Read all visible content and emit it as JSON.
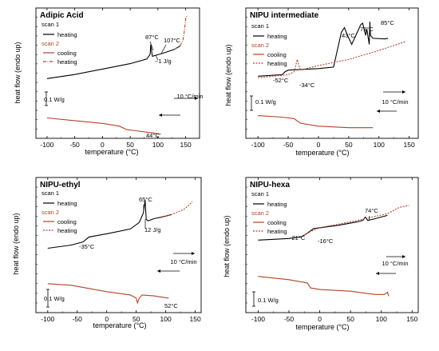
{
  "colors": {
    "scan1": "#000000",
    "scan2": "#b0442a"
  },
  "chart_data": [
    {
      "type": "line",
      "title": "Adipic Acid",
      "xlabel": "temperature (°C)",
      "ylabel": "heat flow (endo up)",
      "xlim": [
        -120,
        175
      ],
      "xticks": [
        "-100",
        "-50",
        "0",
        "50",
        "100",
        "150"
      ],
      "scale_label": "0.1 W/g",
      "rate_label": "10 °C/min",
      "legend": {
        "scan1": "scan 1",
        "scan2": "scan 2",
        "heating": "heating",
        "cooling": "cooling"
      },
      "annotations": [
        "87°C",
        "107°C",
        "~1 J/g",
        "44°C"
      ],
      "series": [
        {
          "name": "heating",
          "scan": 1,
          "style": "solid",
          "points": [
            [
              -100,
              -100
            ],
            [
              -50,
              -85
            ],
            [
              0,
              -65
            ],
            [
              50,
              -45
            ],
            [
              80,
              -28
            ],
            [
              86,
              -10
            ],
            [
              87,
              25
            ],
            [
              90,
              -18
            ],
            [
              100,
              -12
            ],
            [
              110,
              -6
            ],
            [
              130,
              8
            ],
            [
              140,
              20
            ]
          ]
        },
        {
          "name": "heating",
          "scan": 2,
          "style": "dashdot",
          "points": [
            [
              130,
              8
            ],
            [
              140,
              22
            ],
            [
              145,
              40
            ],
            [
              148,
              80
            ],
            [
              150,
              120
            ],
            [
              152,
              130
            ]
          ]
        },
        {
          "name": "cooling",
          "scan": 2,
          "style": "solid",
          "points": [
            [
              -100,
              -245
            ],
            [
              -50,
              -255
            ],
            [
              0,
              -265
            ],
            [
              30,
              -275
            ],
            [
              44,
              -288
            ],
            [
              60,
              -292
            ],
            [
              90,
              -300
            ],
            [
              105,
              -305
            ]
          ]
        }
      ]
    },
    {
      "type": "line",
      "title": "NIPU intermediate",
      "xlabel": "temperature (°C)",
      "ylabel": "heat flow (endo up)",
      "xlim": [
        -120,
        165
      ],
      "xticks": [
        "-100",
        "-50",
        "0",
        "50",
        "100",
        "150"
      ],
      "scale_label": "0.1 W/g",
      "rate_label": "10 °C/min",
      "legend": {
        "scan1": "scan 1",
        "scan2": "scan 2",
        "heating": "heating",
        "cooling": "cooling"
      },
      "annotations": [
        "-52°C",
        "-34°C",
        "43°C",
        "73°C",
        "85°C"
      ],
      "series": [
        {
          "name": "heating",
          "scan": 1,
          "style": "solid",
          "points": [
            [
              -100,
              -115
            ],
            [
              -60,
              -110
            ],
            [
              -55,
              -100
            ],
            [
              -50,
              -95
            ],
            [
              0,
              -90
            ],
            [
              25,
              -85
            ],
            [
              30,
              -40
            ],
            [
              38,
              30
            ],
            [
              43,
              45
            ],
            [
              48,
              20
            ],
            [
              55,
              -10
            ],
            [
              62,
              20
            ],
            [
              70,
              55
            ],
            [
              73,
              60
            ],
            [
              78,
              20
            ],
            [
              80,
              40
            ],
            [
              84,
              -10
            ],
            [
              85,
              65
            ],
            [
              86,
              20
            ],
            [
              90,
              10
            ],
            [
              110,
              8
            ],
            [
              115,
              10
            ]
          ]
        },
        {
          "name": "heating",
          "scan": 2,
          "style": "dashed",
          "points": [
            [
              -100,
              -120
            ],
            [
              -50,
              -110
            ],
            [
              -40,
              -100
            ],
            [
              -35,
              -60
            ],
            [
              -30,
              -95
            ],
            [
              0,
              -80
            ],
            [
              50,
              -60
            ],
            [
              100,
              -30
            ],
            [
              130,
              -10
            ],
            [
              145,
              0
            ]
          ]
        },
        {
          "name": "cooling",
          "scan": 2,
          "style": "solid",
          "points": [
            [
              -100,
              -245
            ],
            [
              -60,
              -250
            ],
            [
              -40,
              -255
            ],
            [
              -30,
              -270
            ],
            [
              0,
              -280
            ],
            [
              50,
              -285
            ],
            [
              90,
              -285
            ]
          ]
        }
      ]
    },
    {
      "type": "line",
      "title": "NIPU-ethyl",
      "xlabel": "temperature (°C)",
      "ylabel": "heat flow (endo up)",
      "xlim": [
        -120,
        160
      ],
      "xticks": [
        "-100",
        "-50",
        "0",
        "50",
        "100",
        "150"
      ],
      "scale_label": "0.1 W/g",
      "rate_label": "10 °C/min",
      "legend": {
        "scan1": "scan 1",
        "scan2": "scan 2",
        "heating": "heating",
        "cooling": "cooling"
      },
      "annotations": [
        "65°C",
        "-35°C",
        "12 J/g",
        "52°C"
      ],
      "series": [
        {
          "name": "heating",
          "scan": 1,
          "style": "solid",
          "points": [
            [
              -100,
              -130
            ],
            [
              -60,
              -120
            ],
            [
              -40,
              -110
            ],
            [
              -30,
              -95
            ],
            [
              0,
              -85
            ],
            [
              40,
              -70
            ],
            [
              55,
              -50
            ],
            [
              62,
              -20
            ],
            [
              65,
              20
            ],
            [
              67,
              -40
            ],
            [
              70,
              -45
            ],
            [
              80,
              -38
            ],
            [
              100,
              -30
            ],
            [
              110,
              -25
            ]
          ]
        },
        {
          "name": "heating",
          "scan": 2,
          "style": "dashed",
          "points": [
            [
              90,
              -35
            ],
            [
              110,
              -25
            ],
            [
              130,
              -10
            ],
            [
              140,
              5
            ],
            [
              145,
              15
            ]
          ]
        },
        {
          "name": "cooling",
          "scan": 2,
          "style": "solid",
          "points": [
            [
              -100,
              -240
            ],
            [
              -60,
              -245
            ],
            [
              -30,
              -255
            ],
            [
              0,
              -265
            ],
            [
              40,
              -275
            ],
            [
              50,
              -285
            ],
            [
              52,
              -300
            ],
            [
              55,
              -285
            ],
            [
              60,
              -275
            ],
            [
              80,
              -278
            ],
            [
              105,
              -285
            ]
          ]
        }
      ]
    },
    {
      "type": "line",
      "title": "NIPU-hexa",
      "xlabel": "temperature (°C)",
      "ylabel": "heat flow (endo up)",
      "xlim": [
        -120,
        160
      ],
      "xticks": [
        "-100",
        "-50",
        "0",
        "50",
        "100",
        "150"
      ],
      "scale_label": "0.1 W/g",
      "rate_label": "10 °C/min",
      "legend": {
        "scan1": "scan 1",
        "scan2": "scan 2",
        "heating": "heating",
        "cooling": "cooling"
      },
      "annotations": [
        "74°C",
        "-21°C",
        "-16°C"
      ],
      "series": [
        {
          "name": "heating",
          "scan": 1,
          "style": "solid",
          "points": [
            [
              -100,
              -110
            ],
            [
              -50,
              -105
            ],
            [
              -30,
              -100
            ],
            [
              -21,
              -90
            ],
            [
              -10,
              -75
            ],
            [
              30,
              -65
            ],
            [
              60,
              -55
            ],
            [
              70,
              -50
            ],
            [
              74,
              -40
            ],
            [
              78,
              -50
            ],
            [
              90,
              -45
            ],
            [
              110,
              -35
            ]
          ]
        },
        {
          "name": "heating",
          "scan": 2,
          "style": "dashed",
          "points": [
            [
              -25,
              -95
            ],
            [
              -16,
              -85
            ],
            [
              0,
              -72
            ],
            [
              50,
              -55
            ],
            [
              80,
              -42
            ],
            [
              110,
              -30
            ],
            [
              130,
              -10
            ],
            [
              145,
              -5
            ]
          ]
        },
        {
          "name": "cooling",
          "scan": 2,
          "style": "solid",
          "points": [
            [
              -100,
              -220
            ],
            [
              -50,
              -230
            ],
            [
              -20,
              -240
            ],
            [
              -15,
              -255
            ],
            [
              0,
              -260
            ],
            [
              50,
              -265
            ],
            [
              90,
              -275
            ],
            [
              105,
              -275
            ],
            [
              110,
              -268
            ],
            [
              112,
              -280
            ]
          ]
        }
      ]
    }
  ]
}
